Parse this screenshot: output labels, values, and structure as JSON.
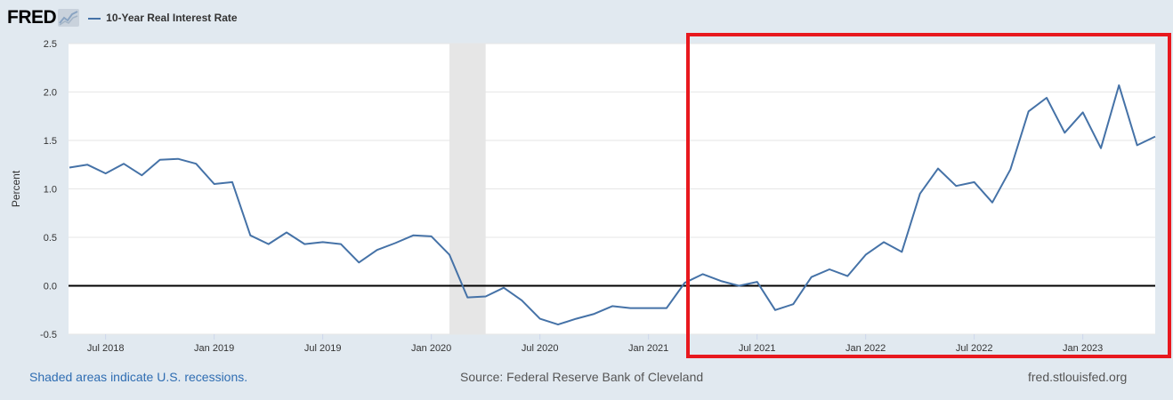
{
  "header": {
    "logo_text": "FRED",
    "legend_label": "10-Year Real Interest Rate"
  },
  "colors": {
    "page_bg": "#e1e9f0",
    "plot_bg": "#ffffff",
    "series": "#4572a7",
    "recession_shade": "#e6e6e6",
    "highlight_box": "#e8181e"
  },
  "chart_data": {
    "type": "line",
    "title": "",
    "xlabel": "",
    "ylabel": "Percent",
    "ylim": [
      -0.5,
      2.5
    ],
    "yticks": [
      "2.5",
      "2.0",
      "1.5",
      "1.0",
      "0.5",
      "0.0",
      "-0.5"
    ],
    "xticks": [
      "Jul 2018",
      "Jan 2019",
      "Jul 2019",
      "Jan 2020",
      "Jul 2020",
      "Jan 2021",
      "Jul 2021",
      "Jan 2022",
      "Jul 2022",
      "Jan 2023"
    ],
    "grid": true,
    "zero_line": true,
    "recession": {
      "start": "2020-02",
      "end": "2020-04"
    },
    "highlight": {
      "start": "2021-04",
      "end": "2023-05"
    },
    "series": [
      {
        "name": "10-Year Real Interest Rate",
        "x": [
          "2018-05",
          "2018-06",
          "2018-07",
          "2018-08",
          "2018-09",
          "2018-10",
          "2018-11",
          "2018-12",
          "2019-01",
          "2019-02",
          "2019-03",
          "2019-04",
          "2019-05",
          "2019-06",
          "2019-07",
          "2019-08",
          "2019-09",
          "2019-10",
          "2019-11",
          "2019-12",
          "2020-01",
          "2020-02",
          "2020-03",
          "2020-04",
          "2020-05",
          "2020-06",
          "2020-07",
          "2020-08",
          "2020-09",
          "2020-10",
          "2020-11",
          "2020-12",
          "2021-01",
          "2021-02",
          "2021-03",
          "2021-04",
          "2021-05",
          "2021-06",
          "2021-07",
          "2021-08",
          "2021-09",
          "2021-10",
          "2021-11",
          "2021-12",
          "2022-01",
          "2022-02",
          "2022-03",
          "2022-04",
          "2022-05",
          "2022-06",
          "2022-07",
          "2022-08",
          "2022-09",
          "2022-10",
          "2022-11",
          "2022-12",
          "2023-01",
          "2023-02",
          "2023-03",
          "2023-04",
          "2023-05"
        ],
        "values": [
          1.22,
          1.25,
          1.16,
          1.26,
          1.14,
          1.3,
          1.31,
          1.26,
          1.05,
          1.07,
          0.52,
          0.43,
          0.55,
          0.43,
          0.45,
          0.43,
          0.24,
          0.37,
          0.44,
          0.52,
          0.51,
          0.32,
          -0.12,
          -0.11,
          -0.02,
          -0.15,
          -0.34,
          -0.4,
          -0.34,
          -0.29,
          -0.21,
          -0.23,
          -0.23,
          -0.23,
          0.03,
          0.12,
          0.05,
          0.0,
          0.04,
          -0.25,
          -0.19,
          0.09,
          0.17,
          0.1,
          0.32,
          0.45,
          0.35,
          0.95,
          1.21,
          1.03,
          1.07,
          0.86,
          1.2,
          1.8,
          1.94,
          1.58,
          1.79,
          1.42,
          2.07,
          1.45,
          1.54
        ]
      }
    ]
  },
  "footer": {
    "recessions_note": "Shaded areas indicate U.S. recessions.",
    "source": "Source: Federal Reserve Bank of Cleveland",
    "site": "fred.stlouisfed.org"
  }
}
